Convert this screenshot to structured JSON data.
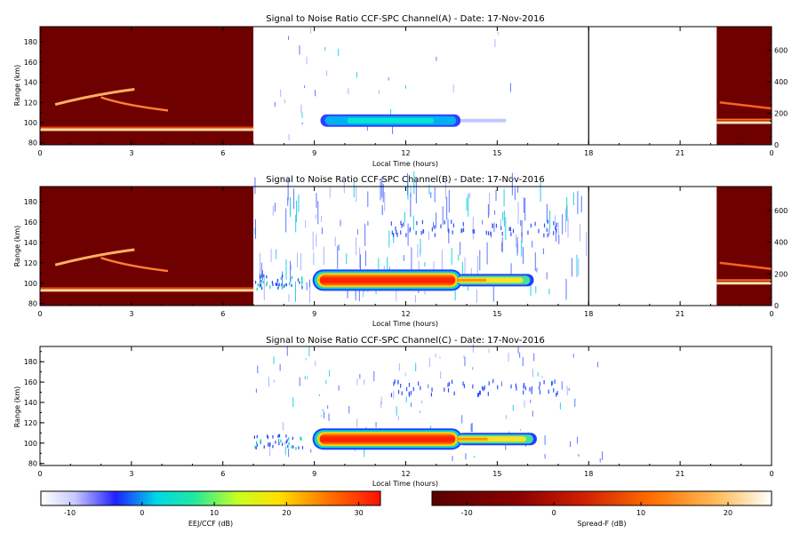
{
  "chart_data": [
    {
      "type": "heatmap",
      "title": "Signal to Noise Ratio CCF-SPC Channel(A) - Date: 17-Nov-2016",
      "xlabel": "Local Time (hours)",
      "ylabel": "Range (km)",
      "xlim": [
        0,
        24
      ],
      "ylim": [
        78,
        195
      ],
      "y2lim": [
        0,
        750
      ],
      "xticks": [
        "0",
        "3",
        "6",
        "9",
        "12",
        "15",
        "18",
        "21",
        "0"
      ],
      "yticks": [
        "80",
        "100",
        "120",
        "140",
        "160",
        "180"
      ],
      "y2ticks": [
        "0",
        "200",
        "400",
        "600"
      ],
      "spread_f_periods": [
        [
          0,
          7
        ],
        [
          22.2,
          24
        ]
      ],
      "eej_blobs": [
        {
          "t_start": 9.2,
          "t_end": 13.8,
          "range_km": 102,
          "peak_db": 8
        },
        {
          "t_start": 13.8,
          "t_end": 15.3,
          "range_km": 102,
          "peak_db": -10
        }
      ],
      "marker_line_hour": 18
    },
    {
      "type": "heatmap",
      "title": "Signal to Noise Ratio CCF-SPC Channel(B) - Date: 17-Nov-2016",
      "xlabel": "Local Time (hours)",
      "ylabel": "Range (km)",
      "xlim": [
        0,
        24
      ],
      "ylim": [
        78,
        195
      ],
      "y2lim": [
        0,
        750
      ],
      "xticks": [
        "0",
        "3",
        "6",
        "9",
        "12",
        "15",
        "18",
        "21",
        "0"
      ],
      "yticks": [
        "80",
        "100",
        "120",
        "140",
        "160",
        "180"
      ],
      "y2ticks": [
        "0",
        "200",
        "400",
        "600"
      ],
      "spread_f_periods": [
        [
          0,
          7
        ],
        [
          22.2,
          24
        ]
      ],
      "eej_blobs": [
        {
          "t_start": 9.0,
          "t_end": 13.8,
          "range_km": 103,
          "peak_db": 31
        },
        {
          "t_start": 13.8,
          "t_end": 16.2,
          "range_km": 103,
          "peak_db": 22
        }
      ],
      "marker_line_hour": 18
    },
    {
      "type": "heatmap",
      "title": "Signal to Noise Ratio CCF-SPC Channel(C) - Date: 17-Nov-2016",
      "xlabel": "Local Time (hours)",
      "ylabel": "Range (km)",
      "xlim": [
        0,
        24
      ],
      "ylim": [
        78,
        195
      ],
      "xticks": [
        "0",
        "3",
        "6",
        "9",
        "12",
        "15",
        "18",
        "21",
        "0"
      ],
      "yticks": [
        "80",
        "100",
        "120",
        "140",
        "160",
        "180"
      ],
      "spread_f_periods": [],
      "eej_blobs": [
        {
          "t_start": 9.0,
          "t_end": 13.8,
          "range_km": 104,
          "peak_db": 31
        },
        {
          "t_start": 13.8,
          "t_end": 16.3,
          "range_km": 104,
          "peak_db": 22
        }
      ]
    }
  ],
  "colorbars": [
    {
      "label": "EEJ/CCF (dB)",
      "ticks": [
        "-10",
        "0",
        "10",
        "20",
        "30"
      ],
      "range": [
        -14,
        33
      ],
      "colors": [
        "#ffffff",
        "#3040ff",
        "#00e0e0",
        "#ffff00",
        "#ff2000"
      ]
    },
    {
      "label": "Spread-F (dB)",
      "ticks": [
        "-10",
        "0",
        "10",
        "20"
      ],
      "range": [
        -14,
        25
      ],
      "colors": [
        "#6a0000",
        "#a00000",
        "#ff6000",
        "#ffffff"
      ]
    }
  ]
}
